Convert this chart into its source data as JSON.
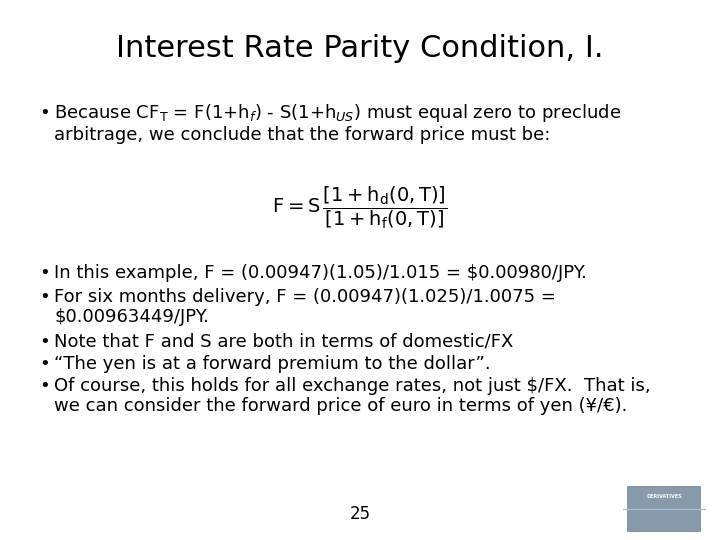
{
  "title": "Interest Rate Parity Condition, I.",
  "background_color": "#ffffff",
  "title_fontsize": 22,
  "body_fontsize": 13,
  "formula_fontsize": 14,
  "bullet1_line1": "Because $\\mathrm{CF_T}$ = F(1+h$_f$) - S(1+h$_{US}$) must equal zero to preclude",
  "bullet1_line2": "arbitrage, we conclude that the forward price must be:",
  "bullet2": "In this example, F = (0.00947)(1.05)/1.015 = $0.00980/JPY.",
  "bullet3_line1": "For six months delivery, F = (0.00947)(1.025)/1.0075 =",
  "bullet3_line2": "$0.00963449/JPY.",
  "bullet4": "Note that F and S are both in terms of domestic/FX",
  "bullet5": "“The yen is at a forward premium to the dollar”.",
  "bullet6_line1": "Of course, this holds for all exchange rates, not just $/FX.  That is,",
  "bullet6_line2": "we can consider the forward price of euro in terms of yen (¥/€).",
  "page_number": "25",
  "text_color": "#000000",
  "title_color": "#000000"
}
